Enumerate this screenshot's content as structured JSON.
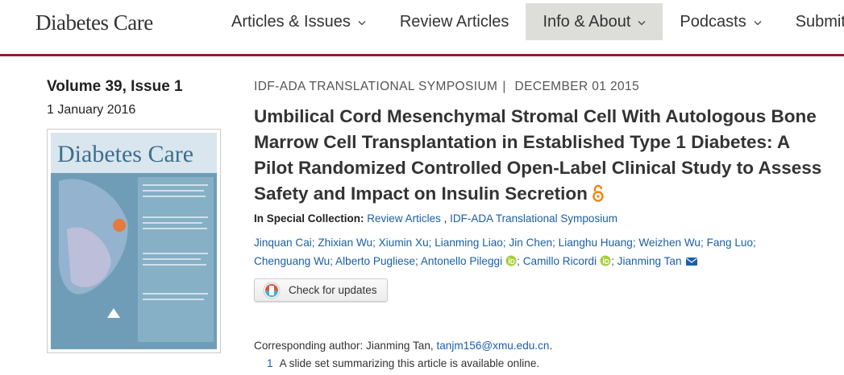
{
  "header": {
    "logo": "Diabetes Care",
    "nav": [
      {
        "label": "Articles & Issues",
        "dropdown": true,
        "active": false
      },
      {
        "label": "Review Articles",
        "dropdown": false,
        "active": false
      },
      {
        "label": "Info & About",
        "dropdown": true,
        "active": true
      },
      {
        "label": "Podcasts",
        "dropdown": true,
        "active": false
      },
      {
        "label": "Submit",
        "dropdown": false,
        "active": false
      }
    ]
  },
  "issue": {
    "volume": "Volume 39, Issue 1",
    "date": "1 January 2016"
  },
  "cover": {
    "title": "Diabetes Care"
  },
  "article": {
    "category": "IDF-ADA TRANSLATIONAL SYMPOSIUM",
    "separator": "|",
    "date": "DECEMBER 01 2015",
    "title": "Umbilical Cord Mesenchymal Stromal Cell With Autologous Bone Marrow Cell Transplantation in Established Type 1 Diabetes: A Pilot Randomized Controlled Open-Label Clinical Study to Assess Safety and Impact on Insulin Secretion",
    "open_access": true,
    "collection_label": "In Special Collection:",
    "collection_separator": ",",
    "collections": [
      "Review Articles",
      "IDF-ADA Translational Symposium"
    ],
    "author_separator": ";",
    "authors": [
      {
        "name": "Jinquan Cai",
        "orcid": false,
        "email": false
      },
      {
        "name": "Zhixian Wu",
        "orcid": false,
        "email": false
      },
      {
        "name": "Xiumin Xu",
        "orcid": false,
        "email": false
      },
      {
        "name": "Lianming Liao",
        "orcid": false,
        "email": false
      },
      {
        "name": "Jin Chen",
        "orcid": false,
        "email": false
      },
      {
        "name": "Lianghu Huang",
        "orcid": false,
        "email": false
      },
      {
        "name": "Weizhen Wu",
        "orcid": false,
        "email": false
      },
      {
        "name": "Fang Luo",
        "orcid": false,
        "email": false
      },
      {
        "name": "Chenguang Wu",
        "orcid": false,
        "email": false
      },
      {
        "name": "Alberto Pugliese",
        "orcid": false,
        "email": false
      },
      {
        "name": "Antonello Pileggi",
        "orcid": true,
        "email": false
      },
      {
        "name": "Camillo Ricordi",
        "orcid": true,
        "email": false
      },
      {
        "name": "Jianming Tan",
        "orcid": false,
        "email": true
      }
    ],
    "check_updates": "Check for updates",
    "corresponding_label": "Corresponding author: Jianming Tan,",
    "email": "tanjm156@xmu.edu.cn",
    "email_end": ".",
    "footnote_marker": "1",
    "footnote": "A slide set summarizing this article is available online."
  }
}
